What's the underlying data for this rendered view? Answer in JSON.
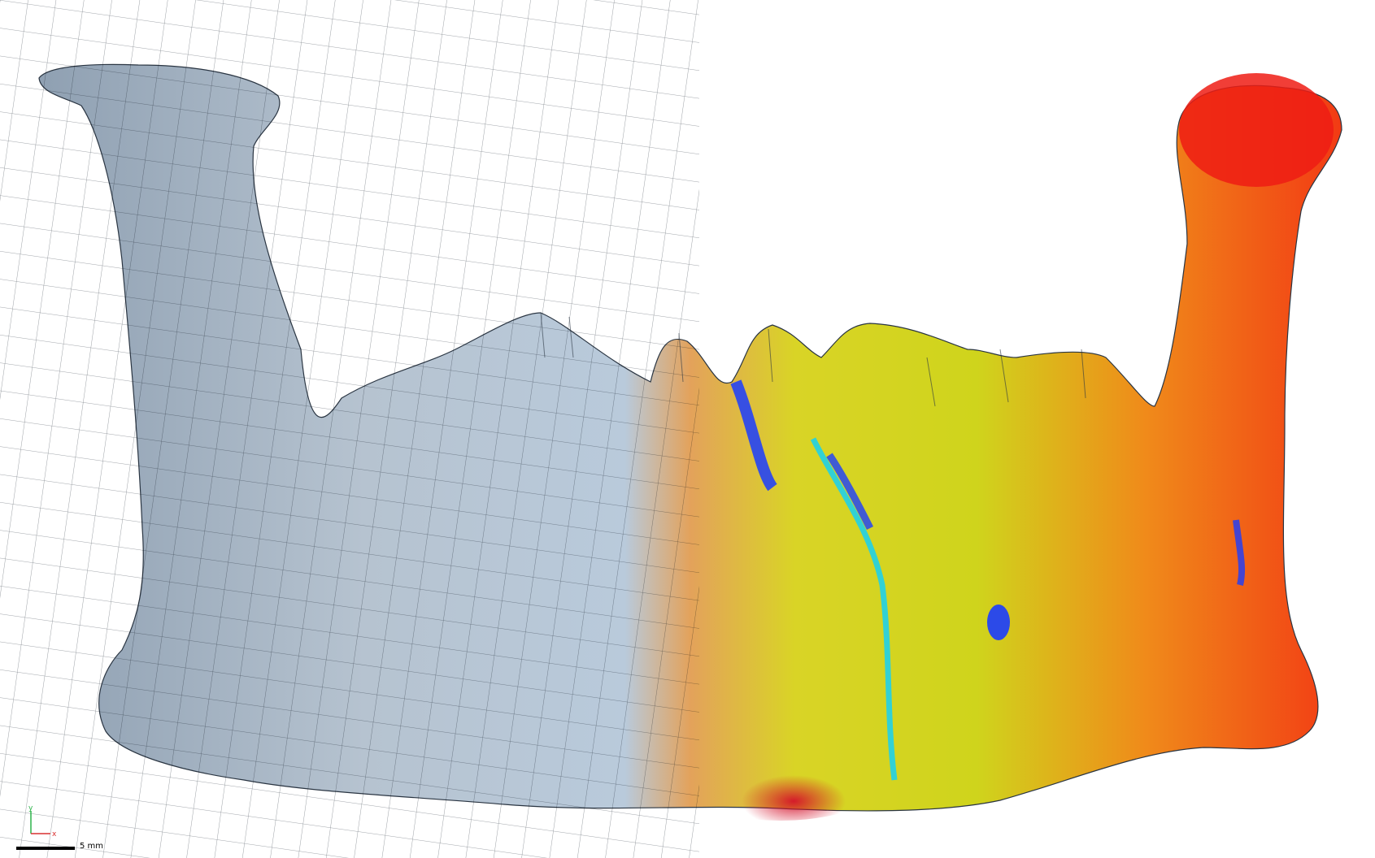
{
  "viewport": {
    "model_name": "mandible-icon",
    "left_material_color": "#a9b8c8",
    "gradient_colors": [
      "#b8c9da",
      "#ff1a1a",
      "#ffcc00",
      "#d8e614",
      "#33e6e6",
      "#1a3cff"
    ],
    "heatmap_accent": "#ff2a00"
  },
  "axes": {
    "y_label": "y",
    "x_label": "x",
    "y_color": "#2db34a",
    "x_color": "#d93030"
  },
  "scale_bar": {
    "label": "5 mm"
  }
}
